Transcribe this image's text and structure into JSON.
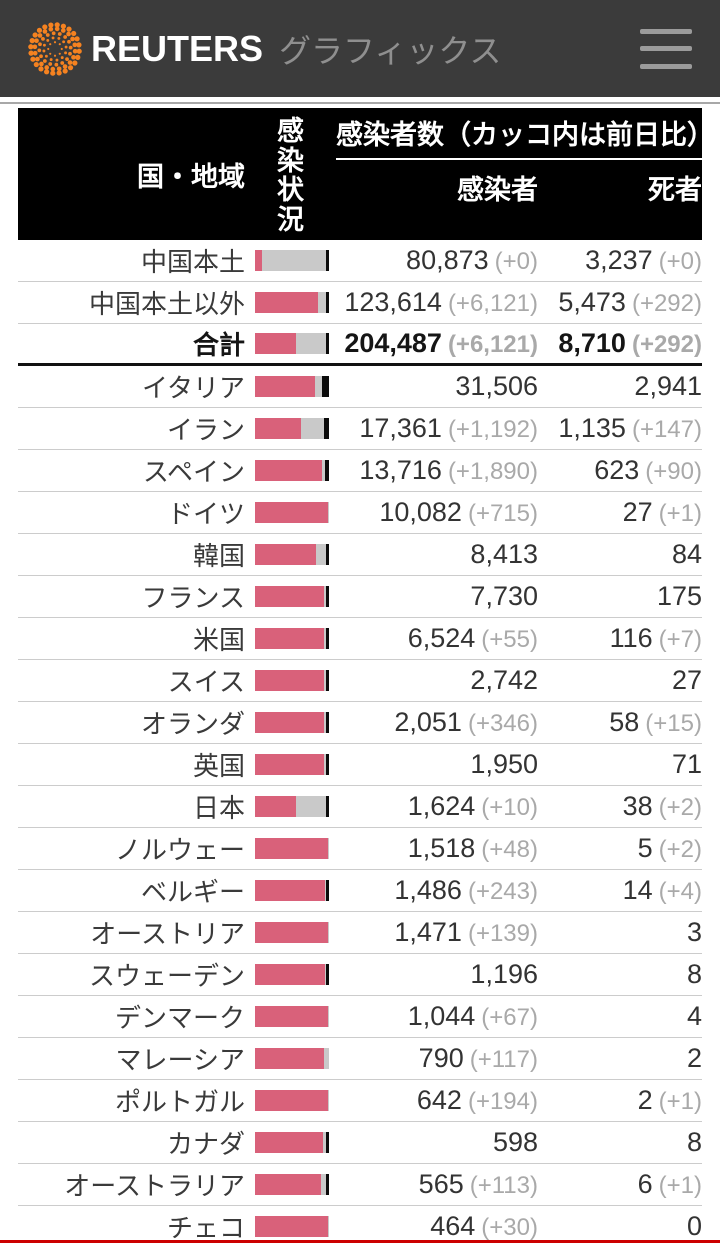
{
  "topbar": {
    "brand": "REUTERS",
    "brand_suffix": "グラフィックス"
  },
  "colors": {
    "topbar_bg": "#3b3b3b",
    "brand_orange": "#f58220",
    "bar_active": "#d9617a",
    "bar_recovered": "#c9c9c9",
    "bar_dead": "#0b0b0b",
    "bottom_accent": "#cc0000"
  },
  "chart_data": {
    "type": "table",
    "title": "感染者数（カッコ内は前日比）",
    "columns": {
      "country": "国・地域",
      "status": "感染状況",
      "infected": "感染者",
      "deaths": "死者"
    },
    "bar_legend": [
      "active-share",
      "recovered-share",
      "deaths-share"
    ],
    "rows": [
      {
        "country": "中国本土",
        "infected": "80,873",
        "infected_delta": "(+0)",
        "deaths": "3,237",
        "deaths_delta": "(+0)",
        "bar": [
          10,
          86,
          4
        ],
        "bold": false,
        "rule_after": false
      },
      {
        "country": "中国本土以外",
        "infected": "123,614",
        "infected_delta": "(+6,121)",
        "deaths": "5,473",
        "deaths_delta": "(+292)",
        "bar": [
          85,
          11,
          4
        ],
        "bold": false,
        "rule_after": false
      },
      {
        "country": "合計",
        "infected": "204,487",
        "infected_delta": "(+6,121)",
        "deaths": "8,710",
        "deaths_delta": "(+292)",
        "bar": [
          55,
          41,
          4
        ],
        "bold": true,
        "rule_after": true
      },
      {
        "country": "イタリア",
        "infected": "31,506",
        "infected_delta": "",
        "deaths": "2,941",
        "deaths_delta": "",
        "bar": [
          81,
          9,
          10
        ],
        "bold": false,
        "rule_after": false
      },
      {
        "country": "イラン",
        "infected": "17,361",
        "infected_delta": "(+1,192)",
        "deaths": "1,135",
        "deaths_delta": "(+147)",
        "bar": [
          62,
          31,
          7
        ],
        "bold": false,
        "rule_after": false
      },
      {
        "country": "スペイン",
        "infected": "13,716",
        "infected_delta": "(+1,890)",
        "deaths": "623",
        "deaths_delta": "(+90)",
        "bar": [
          91,
          4,
          5
        ],
        "bold": false,
        "rule_after": false
      },
      {
        "country": "ドイツ",
        "infected": "10,082",
        "infected_delta": "(+715)",
        "deaths": "27",
        "deaths_delta": "(+1)",
        "bar": [
          98,
          2,
          0
        ],
        "bold": false,
        "rule_after": false
      },
      {
        "country": "韓国",
        "infected": "8,413",
        "infected_delta": "",
        "deaths": "84",
        "deaths_delta": "",
        "bar": [
          85,
          14,
          1
        ],
        "bold": false,
        "rule_after": false
      },
      {
        "country": "フランス",
        "infected": "7,730",
        "infected_delta": "",
        "deaths": "175",
        "deaths_delta": "",
        "bar": [
          95,
          3,
          2
        ],
        "bold": false,
        "rule_after": false
      },
      {
        "country": "米国",
        "infected": "6,524",
        "infected_delta": "(+55)",
        "deaths": "116",
        "deaths_delta": "(+7)",
        "bar": [
          95,
          3,
          2
        ],
        "bold": false,
        "rule_after": false
      },
      {
        "country": "スイス",
        "infected": "2,742",
        "infected_delta": "",
        "deaths": "27",
        "deaths_delta": "",
        "bar": [
          96,
          3,
          1
        ],
        "bold": false,
        "rule_after": false
      },
      {
        "country": "オランダ",
        "infected": "2,051",
        "infected_delta": "(+346)",
        "deaths": "58",
        "deaths_delta": "(+15)",
        "bar": [
          94,
          3,
          3
        ],
        "bold": false,
        "rule_after": false
      },
      {
        "country": "英国",
        "infected": "1,950",
        "infected_delta": "",
        "deaths": "71",
        "deaths_delta": "",
        "bar": [
          93,
          3,
          4
        ],
        "bold": false,
        "rule_after": false
      },
      {
        "country": "日本",
        "infected": "1,624",
        "infected_delta": "(+10)",
        "deaths": "38",
        "deaths_delta": "(+2)",
        "bar": [
          56,
          42,
          2
        ],
        "bold": false,
        "rule_after": false
      },
      {
        "country": "ノルウェー",
        "infected": "1,518",
        "infected_delta": "(+48)",
        "deaths": "5",
        "deaths_delta": "(+2)",
        "bar": [
          99,
          1,
          0
        ],
        "bold": false,
        "rule_after": false
      },
      {
        "country": "ベルギー",
        "infected": "1,486",
        "infected_delta": "(+243)",
        "deaths": "14",
        "deaths_delta": "(+4)",
        "bar": [
          97,
          2,
          1
        ],
        "bold": false,
        "rule_after": false
      },
      {
        "country": "オーストリア",
        "infected": "1,471",
        "infected_delta": "(+139)",
        "deaths": "3",
        "deaths_delta": "",
        "bar": [
          99,
          1,
          0
        ],
        "bold": false,
        "rule_after": false
      },
      {
        "country": "スウェーデン",
        "infected": "1,196",
        "infected_delta": "",
        "deaths": "8",
        "deaths_delta": "",
        "bar": [
          98,
          1,
          1
        ],
        "bold": false,
        "rule_after": false
      },
      {
        "country": "デンマーク",
        "infected": "1,044",
        "infected_delta": "(+67)",
        "deaths": "4",
        "deaths_delta": "",
        "bar": [
          99,
          1,
          0
        ],
        "bold": false,
        "rule_after": false
      },
      {
        "country": "マレーシア",
        "infected": "790",
        "infected_delta": "(+117)",
        "deaths": "2",
        "deaths_delta": "",
        "bar": [
          93,
          7,
          0
        ],
        "bold": false,
        "rule_after": false
      },
      {
        "country": "ポルトガル",
        "infected": "642",
        "infected_delta": "(+194)",
        "deaths": "2",
        "deaths_delta": "(+1)",
        "bar": [
          99,
          1,
          0
        ],
        "bold": false,
        "rule_after": false
      },
      {
        "country": "カナダ",
        "infected": "598",
        "infected_delta": "",
        "deaths": "8",
        "deaths_delta": "",
        "bar": [
          95,
          4,
          1
        ],
        "bold": false,
        "rule_after": false
      },
      {
        "country": "オーストラリア",
        "infected": "565",
        "infected_delta": "(+113)",
        "deaths": "6",
        "deaths_delta": "(+1)",
        "bar": [
          92,
          7,
          1
        ],
        "bold": false,
        "rule_after": false
      },
      {
        "country": "チェコ",
        "infected": "464",
        "infected_delta": "(+30)",
        "deaths": "0",
        "deaths_delta": "",
        "bar": [
          99,
          1,
          0
        ],
        "bold": false,
        "rule_after": false
      }
    ]
  }
}
